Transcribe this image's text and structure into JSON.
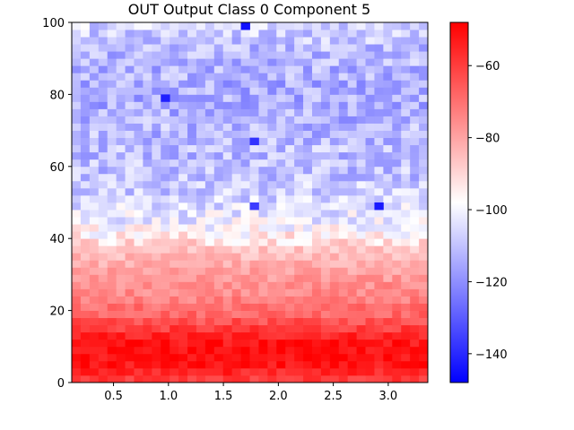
{
  "chart_data": {
    "type": "heatmap",
    "title": "OUT Output Class 0 Component 5",
    "xlabel": "",
    "ylabel": "",
    "xlim": [
      0.12,
      3.36
    ],
    "ylim": [
      0,
      100
    ],
    "x_ticks": [
      0.5,
      1.0,
      1.5,
      2.0,
      2.5,
      3.0
    ],
    "x_tick_labels": [
      "0.5",
      "1.0",
      "1.5",
      "2.0",
      "2.5",
      "3.0"
    ],
    "y_ticks": [
      0,
      20,
      40,
      60,
      80,
      100
    ],
    "y_tick_labels": [
      "0",
      "20",
      "40",
      "60",
      "80",
      "100"
    ],
    "colormap": "bwr",
    "color_range": [
      -148,
      -48
    ],
    "colorbar_ticks": [
      -60,
      -80,
      -100,
      -120,
      -140
    ],
    "colorbar_tick_labels": [
      "−60",
      "−80",
      "−100",
      "−120",
      "−140"
    ],
    "grid": false,
    "n_cols": 40,
    "n_rows": 50,
    "row_profile": {
      "description_free": true,
      "y_values": [
        1,
        3,
        5,
        7,
        9,
        11,
        13,
        15,
        17,
        19,
        21,
        23,
        25,
        27,
        29,
        31,
        33,
        35,
        37,
        39,
        41,
        43,
        45,
        47,
        49,
        51,
        53,
        55,
        57,
        59,
        61,
        63,
        65,
        67,
        69,
        71,
        73,
        75,
        77,
        79,
        81,
        83,
        85,
        87,
        89,
        91,
        93,
        95,
        97,
        99
      ],
      "mean_values": [
        -60,
        -55,
        -52,
        -51,
        -51,
        -52,
        -55,
        -60,
        -64,
        -68,
        -70,
        -73,
        -75,
        -76,
        -78,
        -80,
        -82,
        -84,
        -86,
        -90,
        -95,
        -98,
        -102,
        -103,
        -104,
        -106,
        -108,
        -108,
        -110,
        -110,
        -110,
        -111,
        -111,
        -112,
        -112,
        -112,
        -113,
        -113,
        -114,
        -114,
        -114,
        -114,
        -113,
        -113,
        -112,
        -112,
        -111,
        -110,
        -108,
        -106
      ]
    },
    "outlier_cells": [
      {
        "x": 1.7,
        "y": 99,
        "value": -145
      },
      {
        "x": 0.95,
        "y": 78,
        "value": -142
      },
      {
        "x": 1.8,
        "y": 66,
        "value": -138
      },
      {
        "x": 1.8,
        "y": 48,
        "value": -136
      },
      {
        "x": 2.9,
        "y": 48,
        "value": -143
      }
    ]
  }
}
